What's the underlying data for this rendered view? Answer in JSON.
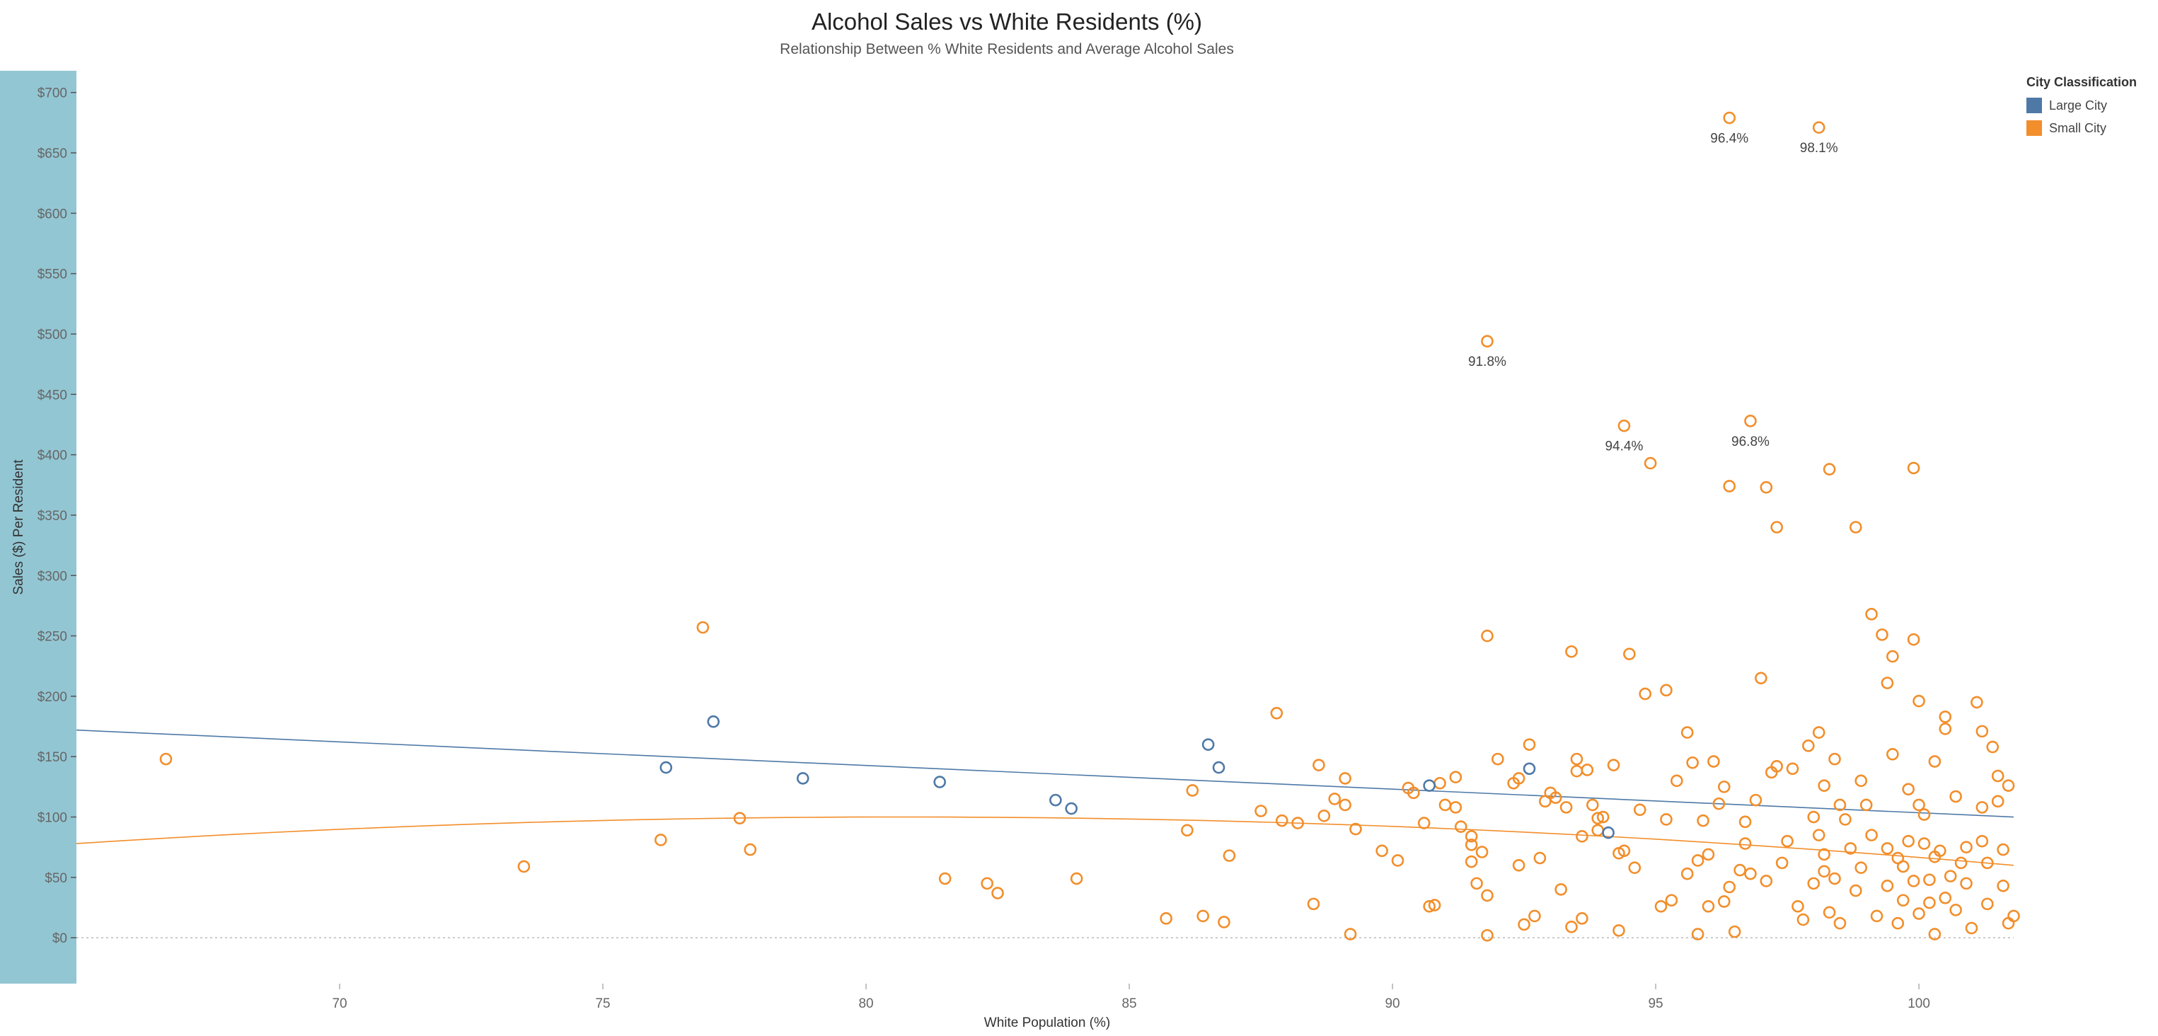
{
  "chart_data": {
    "type": "scatter",
    "title": "Alcohol Sales vs White Residents (%)",
    "subtitle": "Relationship Between % White Residents and Average Alcohol Sales",
    "xlabel": "White Population (%)",
    "ylabel": "Sales ($) Per Resident",
    "xlim": [
      65,
      101.8
    ],
    "ylim": [
      -38,
      718
    ],
    "x_ticks": [
      70,
      75,
      80,
      85,
      90,
      95,
      100
    ],
    "y_ticks": [
      0,
      50,
      100,
      150,
      200,
      250,
      300,
      350,
      400,
      450,
      500,
      550,
      600,
      650,
      700
    ],
    "y_tick_labels": [
      "$0",
      "$50",
      "$100",
      "$150",
      "$200",
      "$250",
      "$300",
      "$350",
      "$400",
      "$450",
      "$500",
      "$550",
      "$600",
      "$650",
      "$700"
    ],
    "x_tick_labels": [
      "70",
      "75",
      "80",
      "85",
      "90",
      "95",
      "100"
    ],
    "legend": {
      "title": "City Classification",
      "placement": "top-right",
      "items": [
        {
          "label": "Large City",
          "color": "#4e79a7"
        },
        {
          "label": "Small City",
          "color": "#f28e2b"
        }
      ]
    },
    "series": [
      {
        "name": "Large City",
        "color": "#4e79a7",
        "points": [
          [
            76.2,
            141
          ],
          [
            77.1,
            179
          ],
          [
            78.8,
            132
          ],
          [
            81.4,
            129
          ],
          [
            83.6,
            114
          ],
          [
            83.9,
            107
          ],
          [
            86.5,
            160
          ],
          [
            86.7,
            141
          ],
          [
            90.7,
            126
          ],
          [
            92.6,
            140
          ],
          [
            94.1,
            87
          ]
        ],
        "trend": {
          "kind": "linear",
          "x": [
            65,
            101.8
          ],
          "y": [
            172,
            100
          ]
        }
      },
      {
        "name": "Small City",
        "color": "#f28e2b",
        "points": [
          [
            66.7,
            148
          ],
          [
            73.5,
            59
          ],
          [
            76.1,
            81
          ],
          [
            76.9,
            257
          ],
          [
            77.6,
            99
          ],
          [
            77.8,
            73
          ],
          [
            81.5,
            49
          ],
          [
            82.3,
            45
          ],
          [
            82.5,
            37
          ],
          [
            84,
            49
          ],
          [
            85.7,
            16
          ],
          [
            86.1,
            89
          ],
          [
            86.2,
            122
          ],
          [
            86.4,
            18
          ],
          [
            86.8,
            13
          ],
          [
            86.9,
            68
          ],
          [
            87.5,
            105
          ],
          [
            87.8,
            186
          ],
          [
            87.9,
            97
          ],
          [
            88.2,
            95
          ],
          [
            88.5,
            28
          ],
          [
            88.6,
            143
          ],
          [
            88.7,
            101
          ],
          [
            88.9,
            115
          ],
          [
            89.1,
            110
          ],
          [
            89.1,
            132
          ],
          [
            89.2,
            3
          ],
          [
            89.3,
            90
          ],
          [
            89.8,
            72
          ],
          [
            90.1,
            64
          ],
          [
            90.3,
            124
          ],
          [
            90.4,
            120
          ],
          [
            90.6,
            95
          ],
          [
            90.7,
            26
          ],
          [
            90.8,
            27
          ],
          [
            90.9,
            128
          ],
          [
            91,
            110
          ],
          [
            91.2,
            133
          ],
          [
            91.2,
            108
          ],
          [
            91.3,
            92
          ],
          [
            91.5,
            63
          ],
          [
            91.5,
            84
          ],
          [
            91.5,
            77
          ],
          [
            91.6,
            45
          ],
          [
            91.7,
            71
          ],
          [
            91.8,
            250
          ],
          [
            91.8,
            35
          ],
          [
            91.8,
            494
          ],
          [
            91.8,
            2
          ],
          [
            92,
            148
          ],
          [
            92.3,
            128
          ],
          [
            92.4,
            132
          ],
          [
            92.4,
            60
          ],
          [
            92.5,
            11
          ],
          [
            92.6,
            160
          ],
          [
            92.7,
            18
          ],
          [
            92.8,
            66
          ],
          [
            92.9,
            113
          ],
          [
            93,
            120
          ],
          [
            93.1,
            116
          ],
          [
            93.2,
            40
          ],
          [
            93.3,
            108
          ],
          [
            93.4,
            237
          ],
          [
            93.4,
            9
          ],
          [
            93.5,
            148
          ],
          [
            93.5,
            138
          ],
          [
            93.6,
            84
          ],
          [
            93.6,
            16
          ],
          [
            93.7,
            139
          ],
          [
            93.8,
            110
          ],
          [
            93.9,
            99
          ],
          [
            93.9,
            89
          ],
          [
            94,
            100
          ],
          [
            94.2,
            143
          ],
          [
            94.3,
            70
          ],
          [
            94.3,
            6
          ],
          [
            94.4,
            72
          ],
          [
            94.4,
            424
          ],
          [
            94.5,
            235
          ],
          [
            94.6,
            58
          ],
          [
            94.7,
            106
          ],
          [
            94.8,
            202
          ],
          [
            94.9,
            393
          ],
          [
            95.1,
            26
          ],
          [
            95.2,
            205
          ],
          [
            95.2,
            98
          ],
          [
            95.3,
            31
          ],
          [
            95.4,
            130
          ],
          [
            95.6,
            170
          ],
          [
            95.6,
            53
          ],
          [
            95.7,
            145
          ],
          [
            95.8,
            64
          ],
          [
            95.8,
            3
          ],
          [
            95.9,
            97
          ],
          [
            96,
            69
          ],
          [
            96,
            26
          ],
          [
            96.1,
            146
          ],
          [
            96.2,
            111
          ],
          [
            96.3,
            125
          ],
          [
            96.3,
            30
          ],
          [
            96.4,
            42
          ],
          [
            96.5,
            5
          ],
          [
            96.6,
            56
          ],
          [
            96.7,
            96
          ],
          [
            96.7,
            78
          ],
          [
            96.8,
            53
          ],
          [
            96.9,
            114
          ],
          [
            97,
            215
          ],
          [
            97.1,
            47
          ],
          [
            97.1,
            373
          ],
          [
            97.2,
            137
          ],
          [
            97.3,
            142
          ],
          [
            97.4,
            62
          ],
          [
            97.5,
            80
          ],
          [
            97.6,
            140
          ],
          [
            97.7,
            26
          ],
          [
            97.8,
            15
          ],
          [
            97.9,
            159
          ],
          [
            98,
            100
          ],
          [
            98,
            45
          ],
          [
            98.1,
            85
          ],
          [
            98.1,
            170
          ],
          [
            98.2,
            126
          ],
          [
            98.2,
            55
          ],
          [
            98.2,
            69
          ],
          [
            98.3,
            21
          ],
          [
            98.4,
            148
          ],
          [
            98.4,
            49
          ],
          [
            98.5,
            110
          ],
          [
            98.5,
            12
          ],
          [
            98.6,
            98
          ],
          [
            98.7,
            74
          ],
          [
            98.8,
            340
          ],
          [
            98.8,
            39
          ],
          [
            98.9,
            130
          ],
          [
            98.9,
            58
          ],
          [
            99,
            110
          ],
          [
            99.1,
            268
          ],
          [
            99.1,
            85
          ],
          [
            99.2,
            18
          ],
          [
            99.3,
            251
          ],
          [
            99.4,
            74
          ],
          [
            99.4,
            211
          ],
          [
            99.4,
            43
          ],
          [
            99.5,
            152
          ],
          [
            99.5,
            233
          ],
          [
            99.6,
            66
          ],
          [
            99.6,
            12
          ],
          [
            99.7,
            59
          ],
          [
            99.7,
            31
          ],
          [
            99.8,
            123
          ],
          [
            99.8,
            80
          ],
          [
            99.9,
            47
          ],
          [
            99.9,
            389
          ],
          [
            99.9,
            247
          ],
          [
            100,
            110
          ],
          [
            100,
            196
          ],
          [
            100,
            20
          ],
          [
            100.1,
            78
          ],
          [
            100.1,
            102
          ],
          [
            100.2,
            48
          ],
          [
            100.2,
            29
          ],
          [
            100.3,
            146
          ],
          [
            100.3,
            67
          ],
          [
            100.3,
            3
          ],
          [
            100.4,
            72
          ],
          [
            100.5,
            183
          ],
          [
            100.5,
            173
          ],
          [
            100.5,
            33
          ],
          [
            100.6,
            51
          ],
          [
            100.7,
            117
          ],
          [
            100.7,
            23
          ],
          [
            100.8,
            62
          ],
          [
            100.9,
            75
          ],
          [
            100.9,
            45
          ],
          [
            101,
            8
          ],
          [
            101.1,
            195
          ],
          [
            101.2,
            171
          ],
          [
            101.2,
            108
          ],
          [
            101.2,
            80
          ],
          [
            101.3,
            62
          ],
          [
            101.3,
            28
          ],
          [
            101.4,
            158
          ],
          [
            101.5,
            134
          ],
          [
            101.5,
            113
          ],
          [
            101.6,
            73
          ],
          [
            101.6,
            43
          ],
          [
            101.7,
            126
          ],
          [
            101.7,
            12
          ],
          [
            101.8,
            18
          ],
          [
            96.4,
            679
          ],
          [
            98.1,
            671
          ],
          [
            96.8,
            428
          ],
          [
            96.4,
            374
          ],
          [
            98.3,
            388
          ],
          [
            97.3,
            340
          ]
        ],
        "trend": {
          "kind": "quadratic",
          "x": [
            65,
            81,
            101.8
          ],
          "y": [
            78,
            100,
            60
          ]
        }
      }
    ],
    "annotations": [
      {
        "text": "96.4%",
        "x": 96.4,
        "y": 679
      },
      {
        "text": "98.1%",
        "x": 98.1,
        "y": 671
      },
      {
        "text": "91.8%",
        "x": 91.8,
        "y": 494
      },
      {
        "text": "94.4%",
        "x": 94.4,
        "y": 424
      },
      {
        "text": "96.8%",
        "x": 96.8,
        "y": 428
      }
    ]
  }
}
